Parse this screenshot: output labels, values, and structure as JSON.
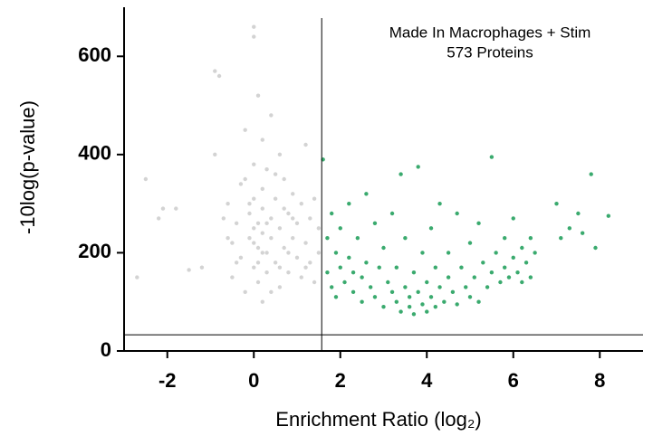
{
  "chart_data": {
    "type": "scatter",
    "xlabel": "Enrichment Ratio (log₂)",
    "ylabel": "-10log(p-value)",
    "annotations": [
      "Made In Macrophages + Stim",
      "573 Proteins"
    ],
    "xlim": [
      -3,
      9
    ],
    "ylim": [
      0,
      700
    ],
    "xticks": [
      -2,
      0,
      2,
      4,
      6,
      8
    ],
    "yticks": [
      0,
      200,
      400,
      600
    ],
    "vline": 1.57,
    "hline": 33,
    "series": [
      {
        "color": "#d3d3d3",
        "x": [
          -2.7,
          -2.5,
          -2.2,
          -2.1,
          -1.8,
          -1.5,
          -1.2,
          -0.9,
          -0.8,
          -0.9,
          -0.6,
          -0.5,
          -0.5,
          -0.4,
          -0.3,
          -0.3,
          -0.2,
          -0.2,
          -0.1,
          -0.1,
          0,
          0,
          0,
          0,
          0,
          0.1,
          0.1,
          0.1,
          0.1,
          0.2,
          0.2,
          0.2,
          0.2,
          0.2,
          0.3,
          0.3,
          0.3,
          0.4,
          0.4,
          0.4,
          0.5,
          0.5,
          0.6,
          0.6,
          0.6,
          0.7,
          0.7,
          0.8,
          0.8,
          0.9,
          0.9,
          1.0,
          1.0,
          1.1,
          1.1,
          1.2,
          1.2,
          1.3,
          1.3,
          1.4,
          1.5,
          1.5,
          -0.6,
          -0.4,
          0.0,
          0.3,
          0.5,
          0.7,
          -0.2,
          0.1,
          0.4,
          -0.7,
          0.8,
          1.4,
          0,
          0.2,
          -0.1,
          0.6,
          0.9,
          1.2
        ],
        "y": [
          150,
          350,
          270,
          290,
          290,
          165,
          170,
          570,
          560,
          400,
          300,
          220,
          150,
          260,
          340,
          190,
          450,
          120,
          280,
          230,
          640,
          660,
          380,
          310,
          170,
          520,
          260,
          210,
          140,
          430,
          330,
          290,
          240,
          100,
          370,
          200,
          160,
          480,
          270,
          230,
          310,
          180,
          400,
          250,
          130,
          350,
          210,
          280,
          160,
          320,
          230,
          190,
          260,
          300,
          150,
          420,
          220,
          180,
          270,
          140,
          200,
          250,
          230,
          180,
          220,
          260,
          360,
          290,
          350,
          180,
          120,
          270,
          200,
          310,
          250,
          200,
          300,
          170,
          270,
          170
        ]
      },
      {
        "color": "#3aaa6e",
        "x": [
          1.6,
          1.7,
          1.7,
          1.8,
          1.8,
          1.9,
          1.9,
          2.0,
          2.0,
          2.1,
          2.2,
          2.2,
          2.3,
          2.3,
          2.4,
          2.5,
          2.5,
          2.6,
          2.6,
          2.7,
          2.8,
          2.8,
          2.9,
          3.0,
          3.0,
          3.1,
          3.2,
          3.2,
          3.3,
          3.3,
          3.4,
          3.4,
          3.5,
          3.5,
          3.6,
          3.6,
          3.7,
          3.7,
          3.8,
          3.8,
          3.9,
          3.9,
          4.0,
          4.0,
          4.1,
          4.1,
          4.2,
          4.2,
          4.3,
          4.3,
          4.4,
          4.5,
          4.5,
          4.6,
          4.7,
          4.7,
          4.8,
          4.9,
          5.0,
          5.0,
          5.1,
          5.2,
          5.2,
          5.3,
          5.4,
          5.5,
          5.5,
          5.6,
          5.7,
          5.8,
          5.8,
          5.9,
          6.0,
          6.0,
          6.1,
          6.2,
          6.2,
          6.3,
          6.4,
          6.4,
          6.5,
          7.0,
          7.1,
          7.3,
          7.5,
          7.6,
          7.8,
          7.9,
          8.2
        ],
        "y": [
          390,
          230,
          160,
          280,
          130,
          200,
          110,
          250,
          170,
          140,
          300,
          190,
          120,
          160,
          230,
          150,
          100,
          320,
          180,
          130,
          260,
          110,
          170,
          210,
          90,
          140,
          280,
          120,
          170,
          100,
          360,
          80,
          230,
          130,
          110,
          90,
          160,
          75,
          375,
          120,
          200,
          95,
          140,
          80,
          250,
          110,
          170,
          90,
          300,
          130,
          100,
          200,
          150,
          120,
          280,
          95,
          170,
          130,
          220,
          110,
          150,
          260,
          100,
          180,
          130,
          395,
          160,
          200,
          140,
          230,
          170,
          150,
          190,
          270,
          160,
          210,
          140,
          180,
          230,
          150,
          200,
          300,
          230,
          250,
          280,
          240,
          360,
          210,
          275
        ]
      }
    ]
  }
}
